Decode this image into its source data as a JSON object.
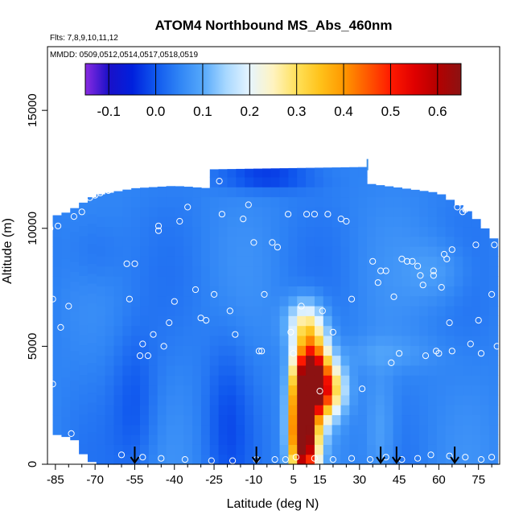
{
  "chart_data": {
    "type": "heatmap",
    "title": "ATOM4 Northbound MS_Abs_460nm",
    "flights_note": "Flts: 7,8,9,10,11,12",
    "dates_note": "MMDD: 0509,0512,0514,0517,0518,0519",
    "xlabel": "Latitude (deg N)",
    "ylabel": "Altitude (m)",
    "xlim": [
      -88,
      83
    ],
    "ylim": [
      0,
      17700
    ],
    "x_ticks": [
      -85,
      -70,
      -55,
      -40,
      -25,
      -10,
      5,
      15,
      30,
      45,
      60,
      75
    ],
    "x_minor_ticks": [
      -80,
      -75,
      -65,
      -60,
      -50,
      -45,
      -35,
      -30,
      -20,
      -15,
      -5,
      0,
      10,
      20,
      25,
      35,
      40,
      50,
      55,
      65,
      70,
      80
    ],
    "y_ticks": [
      0,
      5000,
      10000,
      15000
    ],
    "colorbar": {
      "range": [
        -0.15,
        0.65
      ],
      "ticks": [
        -0.1,
        0.0,
        0.1,
        0.2,
        0.3,
        0.4,
        0.5,
        0.6
      ],
      "tick_labels": [
        "-0.1",
        "0.0",
        "0.1",
        "0.2",
        "0.3",
        "0.4",
        "0.5",
        "0.6"
      ],
      "stops": [
        {
          "v": -0.15,
          "color": "#8a2be2"
        },
        {
          "v": -0.1,
          "color": "#1a10c8"
        },
        {
          "v": -0.05,
          "color": "#0020dd"
        },
        {
          "v": 0.0,
          "color": "#1058ee"
        },
        {
          "v": 0.05,
          "color": "#2f84f5"
        },
        {
          "v": 0.1,
          "color": "#55a8fb"
        },
        {
          "v": 0.15,
          "color": "#a8d8ff"
        },
        {
          "v": 0.2,
          "color": "#e6f5ff"
        },
        {
          "v": 0.25,
          "color": "#fff3c0"
        },
        {
          "v": 0.3,
          "color": "#ffe15a"
        },
        {
          "v": 0.35,
          "color": "#ffc21a"
        },
        {
          "v": 0.4,
          "color": "#ff9800"
        },
        {
          "v": 0.45,
          "color": "#ff5a00"
        },
        {
          "v": 0.5,
          "color": "#ff1a00"
        },
        {
          "v": 0.55,
          "color": "#e00000"
        },
        {
          "v": 0.6,
          "color": "#b40000"
        },
        {
          "v": 0.65,
          "color": "#8c1212"
        }
      ]
    },
    "field": {
      "lat_step": 3.3,
      "alt_step": 420,
      "background_value": 0.05,
      "envelope": [
        {
          "lat": -86,
          "top": 10500
        },
        {
          "lat": -80,
          "top": 10700
        },
        {
          "lat": -70,
          "top": 11400
        },
        {
          "lat": -55,
          "top": 11700
        },
        {
          "lat": -40,
          "top": 11800
        },
        {
          "lat": -27,
          "top": 11700
        },
        {
          "lat": -26,
          "top": 12500
        },
        {
          "lat": 32,
          "top": 12600
        },
        {
          "lat": 33,
          "top": 11900
        },
        {
          "lat": 60,
          "top": 11500
        },
        {
          "lat": 70,
          "top": 10800
        },
        {
          "lat": 75,
          "top": 10300
        },
        {
          "lat": 82,
          "top": 9400
        }
      ],
      "low_bound": [
        {
          "lat": -86,
          "alt": 1300
        },
        {
          "lat": -78,
          "alt": 1100
        },
        {
          "lat": -76,
          "alt": 600
        },
        {
          "lat": -70,
          "alt": 0
        }
      ],
      "features": [
        {
          "lat": 12,
          "alt": 3700,
          "slat": 4.2,
          "salt": 1300,
          "amp": 0.55
        },
        {
          "lat": 8,
          "alt": 1800,
          "slat": 3.0,
          "salt": 1600,
          "amp": 0.45
        },
        {
          "lat": 10,
          "alt": 700,
          "slat": 3.5,
          "salt": 900,
          "amp": 0.32
        },
        {
          "lat": 17,
          "alt": 3200,
          "slat": 5.0,
          "salt": 800,
          "amp": 0.3
        },
        {
          "lat": 9,
          "alt": 6000,
          "slat": 5.0,
          "salt": 700,
          "amp": 0.15
        },
        {
          "lat": -55,
          "alt": 2500,
          "slat": 6.0,
          "salt": 2200,
          "amp": -0.05
        },
        {
          "lat": -20,
          "alt": 2000,
          "slat": 6.0,
          "salt": 2500,
          "amp": -0.05
        },
        {
          "lat": -5,
          "alt": 12200,
          "slat": 12.0,
          "salt": 400,
          "amp": -0.08
        },
        {
          "lat": -70,
          "alt": 9000,
          "slat": 8.0,
          "salt": 1200,
          "amp": -0.03
        },
        {
          "lat": 60,
          "alt": 8200,
          "slat": 8.0,
          "salt": 900,
          "amp": 0.04
        },
        {
          "lat": 40,
          "alt": 4700,
          "slat": 14.0,
          "salt": 500,
          "amp": 0.03
        },
        {
          "lat": 38,
          "alt": 1200,
          "slat": 4.0,
          "salt": 2000,
          "amp": 0.05
        }
      ]
    },
    "series": [
      {
        "type": "scatter",
        "points": [
          [
            -86,
            3400
          ],
          [
            -86,
            7000
          ],
          [
            -84,
            10100
          ],
          [
            -87,
            10000
          ],
          [
            -83,
            5800
          ],
          [
            -80,
            6700
          ],
          [
            -78,
            10500
          ],
          [
            -75,
            10700
          ],
          [
            -72,
            11300
          ],
          [
            -70,
            11400
          ],
          [
            -79,
            1300
          ],
          [
            -74,
            0
          ],
          [
            -68,
            11500
          ],
          [
            -65,
            11600
          ],
          [
            -58,
            8500
          ],
          [
            -55,
            8500
          ],
          [
            -57,
            7000
          ],
          [
            -53,
            4600
          ],
          [
            -52,
            5100
          ],
          [
            -48,
            5500
          ],
          [
            -50,
            4600
          ],
          [
            -46,
            9900
          ],
          [
            -46,
            10100
          ],
          [
            -44,
            5000
          ],
          [
            -42,
            6000
          ],
          [
            -40,
            6900
          ],
          [
            -38,
            10300
          ],
          [
            -35,
            10900
          ],
          [
            -32,
            7400
          ],
          [
            -30,
            6200
          ],
          [
            -28,
            6100
          ],
          [
            -25,
            7200
          ],
          [
            -23,
            12000
          ],
          [
            -22,
            10600
          ],
          [
            -19,
            6500
          ],
          [
            -17,
            5500
          ],
          [
            -14,
            10400
          ],
          [
            -12,
            11000
          ],
          [
            -10,
            9400
          ],
          [
            -8,
            4800
          ],
          [
            -7,
            4800
          ],
          [
            -6,
            7200
          ],
          [
            -3,
            9400
          ],
          [
            -1,
            9200
          ],
          [
            3,
            10600
          ],
          [
            4,
            5600
          ],
          [
            5,
            4700
          ],
          [
            8,
            6700
          ],
          [
            10,
            10600
          ],
          [
            13,
            10600
          ],
          [
            15,
            3100
          ],
          [
            16,
            6500
          ],
          [
            18,
            10600
          ],
          [
            20,
            5600
          ],
          [
            23,
            10400
          ],
          [
            25,
            10300
          ],
          [
            27,
            7000
          ],
          [
            31,
            3200
          ],
          [
            35,
            8600
          ],
          [
            37,
            7700
          ],
          [
            38,
            8200
          ],
          [
            40,
            8200
          ],
          [
            42,
            4300
          ],
          [
            43,
            7100
          ],
          [
            45,
            4700
          ],
          [
            46,
            8700
          ],
          [
            48,
            8600
          ],
          [
            50,
            8600
          ],
          [
            52,
            8400
          ],
          [
            53,
            8000
          ],
          [
            54,
            7600
          ],
          [
            55,
            4600
          ],
          [
            58,
            8200
          ],
          [
            58,
            8000
          ],
          [
            59,
            4800
          ],
          [
            60,
            4700
          ],
          [
            61,
            7500
          ],
          [
            62,
            8900
          ],
          [
            63,
            8700
          ],
          [
            64,
            6000
          ],
          [
            65,
            4800
          ],
          [
            65,
            9100
          ],
          [
            67,
            10900
          ],
          [
            68,
            11100
          ],
          [
            69,
            10700
          ],
          [
            70,
            10800
          ],
          [
            72,
            5100
          ],
          [
            74,
            9300
          ],
          [
            75,
            6100
          ],
          [
            76,
            4700
          ],
          [
            80,
            7200
          ],
          [
            81,
            9300
          ],
          [
            82,
            5000
          ],
          [
            -60,
            400
          ],
          [
            -52,
            300
          ],
          [
            -45,
            250
          ],
          [
            -36,
            200
          ],
          [
            -26,
            150
          ],
          [
            -18,
            150
          ],
          [
            -9,
            200
          ],
          [
            -2,
            200
          ],
          [
            2,
            200
          ],
          [
            6,
            300
          ],
          [
            13,
            250
          ],
          [
            20,
            200
          ],
          [
            27,
            250
          ],
          [
            34,
            200
          ],
          [
            40,
            300
          ],
          [
            46,
            200
          ],
          [
            52,
            250
          ],
          [
            57,
            400
          ],
          [
            64,
            350
          ],
          [
            70,
            300
          ],
          [
            76,
            200
          ],
          [
            80,
            300
          ],
          [
            -86,
            500
          ]
        ]
      },
      {
        "type": "arrows",
        "x": [
          -55,
          -9,
          38,
          44,
          66
        ]
      }
    ],
    "annotations": [
      {
        "type": "tick-mark",
        "x": 33,
        "y": 12700
      }
    ],
    "grid": false,
    "legend": "colorbar-top"
  }
}
